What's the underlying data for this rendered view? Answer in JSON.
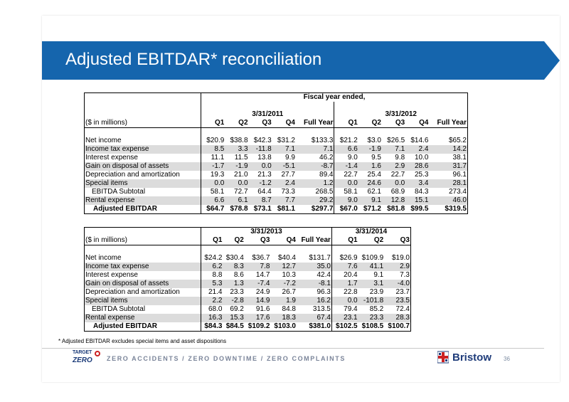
{
  "title": "Adjusted EBITDAR* reconciliation",
  "table1": {
    "group_header": "Fiscal year ended,",
    "period_a": "3/31/2011",
    "period_b": "3/31/2012",
    "unit_label": "($ in millions)",
    "cols_a": [
      "Q1",
      "Q2",
      "Q3",
      "Q4",
      "Full Year"
    ],
    "cols_b": [
      "Q1",
      "Q2",
      "Q3",
      "Q4",
      "Full Year"
    ],
    "rows": [
      {
        "label": "Net income",
        "a": [
          "$20.9",
          "$38.8",
          "$42.3",
          "$31.2",
          "$133.3"
        ],
        "b": [
          "$21.2",
          "$3.0",
          "$26.5",
          "$14.6",
          "$65.2"
        ]
      },
      {
        "label": "Income tax expense",
        "a": [
          "8.5",
          "3.3",
          "-11.8",
          "7.1",
          "7.1"
        ],
        "b": [
          "6.6",
          "-1.9",
          "7.1",
          "2.4",
          "14.2"
        ]
      },
      {
        "label": "Interest expense",
        "a": [
          "11.1",
          "11.5",
          "13.8",
          "9.9",
          "46.2"
        ],
        "b": [
          "9.0",
          "9.5",
          "9.8",
          "10.0",
          "38.1"
        ]
      },
      {
        "label": "Gain on disposal of assets",
        "a": [
          "-1.7",
          "-1.9",
          "0.0",
          "-5.1",
          "-8.7"
        ],
        "b": [
          "-1.4",
          "1.6",
          "2.9",
          "28.6",
          "31.7"
        ]
      },
      {
        "label": "Depreciation and amortization",
        "a": [
          "19.3",
          "21.0",
          "21.3",
          "27.7",
          "89.4"
        ],
        "b": [
          "22.7",
          "25.4",
          "22.7",
          "25.3",
          "96.1"
        ]
      },
      {
        "label": "Special items",
        "a": [
          "0.0",
          "0.0",
          "-1.2",
          "2.4",
          "1.2"
        ],
        "b": [
          "0.0",
          "24.6",
          "0.0",
          "3.4",
          "28.1"
        ]
      },
      {
        "label": "EBITDA Subtotal",
        "a": [
          "58.1",
          "72.7",
          "64.4",
          "73.3",
          "268.5"
        ],
        "b": [
          "58.1",
          "62.1",
          "68.9",
          "84.3",
          "273.4"
        ]
      },
      {
        "label": "Rental expense",
        "a": [
          "6.6",
          "6.1",
          "8.7",
          "7.7",
          "29.2"
        ],
        "b": [
          "9.0",
          "9.1",
          "12.8",
          "15.1",
          "46.0"
        ]
      },
      {
        "label": "Adjusted EBITDAR",
        "a": [
          "$64.7",
          "$78.8",
          "$73.1",
          "$81.1",
          "$297.7"
        ],
        "b": [
          "$67.0",
          "$71.2",
          "$81.8",
          "$99.5",
          "$319.5"
        ]
      }
    ]
  },
  "table2": {
    "period_a": "3/31/2013",
    "period_b": "3/31/2014",
    "unit_label": "($ in millions)",
    "cols_a": [
      "Q1",
      "Q2",
      "Q3",
      "Q4",
      "Full Year"
    ],
    "cols_b": [
      "Q1",
      "Q2",
      "Q3"
    ],
    "rows": [
      {
        "label": "Net income",
        "a": [
          "$24.2",
          "$30.4",
          "$36.7",
          "$40.4",
          "$131.7"
        ],
        "b": [
          "$26.9",
          "$109.9",
          "$19.0"
        ]
      },
      {
        "label": "Income tax expense",
        "a": [
          "6.2",
          "8.3",
          "7.8",
          "12.7",
          "35.0"
        ],
        "b": [
          "7.6",
          "41.1",
          "2.9"
        ]
      },
      {
        "label": "Interest expense",
        "a": [
          "8.8",
          "8.6",
          "14.7",
          "10.3",
          "42.4"
        ],
        "b": [
          "20.4",
          "9.1",
          "7.3"
        ]
      },
      {
        "label": "Gain on disposal of assets",
        "a": [
          "5.3",
          "1.3",
          "-7.4",
          "-7.2",
          "-8.1"
        ],
        "b": [
          "1.7",
          "3.1",
          "-4.0"
        ]
      },
      {
        "label": "Depreciation and amortization",
        "a": [
          "21.4",
          "23.3",
          "24.9",
          "26.7",
          "96.3"
        ],
        "b": [
          "22.8",
          "23.9",
          "23.7"
        ]
      },
      {
        "label": "Special items",
        "a": [
          "2.2",
          "-2.8",
          "14.9",
          "1.9",
          "16.2"
        ],
        "b": [
          "0.0",
          "-101.8",
          "23.5"
        ]
      },
      {
        "label": "EBITDA Subtotal",
        "a": [
          "68.0",
          "69.2",
          "91.6",
          "84.8",
          "313.5"
        ],
        "b": [
          "79.4",
          "85.2",
          "72.4"
        ]
      },
      {
        "label": "Rental expense",
        "a": [
          "16.3",
          "15.3",
          "17.6",
          "18.3",
          "67.4"
        ],
        "b": [
          "23.1",
          "23.3",
          "28.3"
        ]
      },
      {
        "label": "Adjusted EBITDAR",
        "a": [
          "$84.3",
          "$84.5",
          "$109.2",
          "$103.0",
          "$381.0"
        ],
        "b": [
          "$102.5",
          "$108.5",
          "$100.7"
        ]
      }
    ]
  },
  "footnote": "* Adjusted EBITDAR excludes special items and asset dispositions",
  "footer": {
    "logo_top": "TARGET",
    "logo_bottom": "ZERO",
    "tagline": "ZERO ACCIDENTS / ZERO DOWNTIME / ZERO COMPLAINTS",
    "brand": "Bristow",
    "page_number": "36"
  },
  "colors": {
    "title_bar": "#1565ad",
    "shade_row": "#dcdcdc",
    "brand_navy": "#1f3c7a",
    "brand_red": "#cc2222"
  }
}
